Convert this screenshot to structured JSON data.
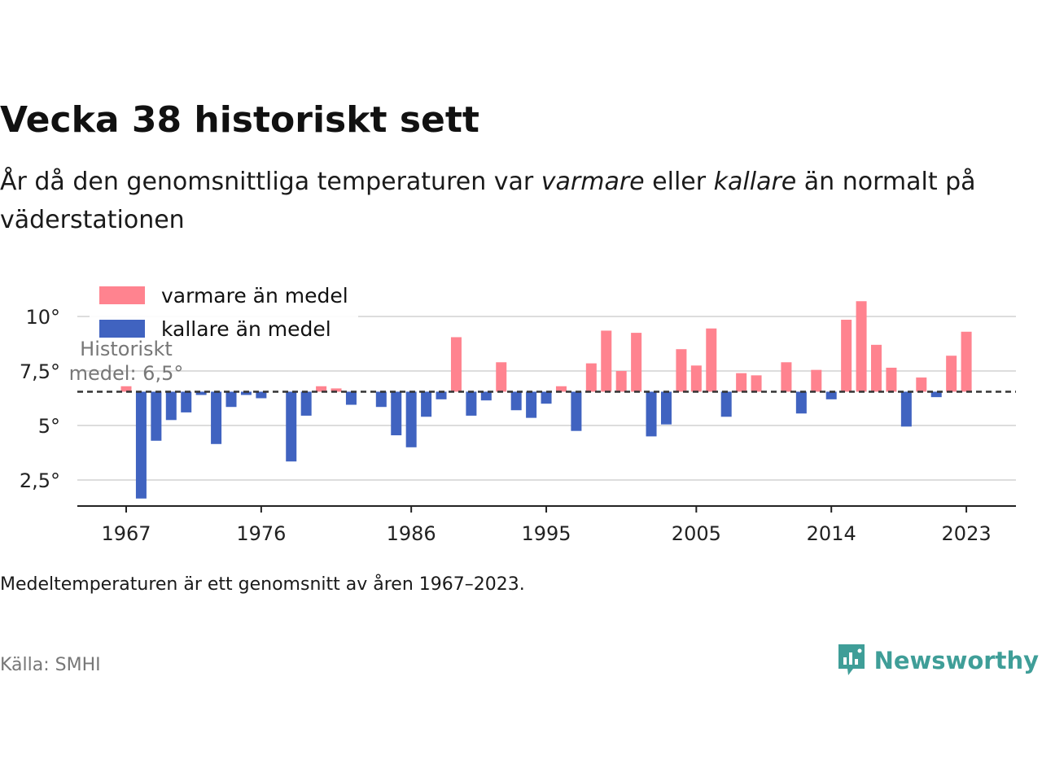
{
  "header": {
    "title": "Vecka 38 historiskt sett",
    "subtitle_parts": [
      "År då den genomsnittliga temperaturen var ",
      "varmare",
      " eller ",
      "kallare",
      " än normalt på väderstationen"
    ]
  },
  "legend": {
    "warm_label": "varmare än medel",
    "cold_label": "kallare än medel"
  },
  "annotation": {
    "line1": "Historiskt",
    "line2": "medel: 6,5°"
  },
  "footer": {
    "note": "Medeltemperaturen är ett genomsnitt av åren 1967–2023.",
    "source": "Källa: SMHI",
    "brand": "Newsworthy"
  },
  "colors": {
    "warm": "#ff838f",
    "cold": "#4063c0",
    "brand": "#3f9e98",
    "grid": "#dddddd",
    "axis": "#222222"
  },
  "chart_data": {
    "type": "bar",
    "baseline": 6.55,
    "ylim": [
      1.0,
      11.5
    ],
    "yticks": [
      2.5,
      5,
      7.5,
      10
    ],
    "ytick_labels": [
      "2,5°",
      "5°",
      "7,5°",
      "10°"
    ],
    "xticks": [
      1967,
      1976,
      1986,
      1995,
      2005,
      2014,
      2023
    ],
    "xtick_labels": [
      "1967",
      "1976",
      "1986",
      "1995",
      "2005",
      "2014",
      "2023"
    ],
    "grid": true,
    "legend_position": "top-left",
    "values": [
      {
        "year": 1967,
        "value": 6.8
      },
      {
        "year": 1968,
        "value": 1.65
      },
      {
        "year": 1969,
        "value": 4.3
      },
      {
        "year": 1970,
        "value": 5.25
      },
      {
        "year": 1971,
        "value": 5.6
      },
      {
        "year": 1972,
        "value": 6.4
      },
      {
        "year": 1973,
        "value": 4.15
      },
      {
        "year": 1974,
        "value": 5.85
      },
      {
        "year": 1975,
        "value": 6.4
      },
      {
        "year": 1976,
        "value": 6.25
      },
      {
        "year": 1978,
        "value": 3.35
      },
      {
        "year": 1979,
        "value": 5.45
      },
      {
        "year": 1980,
        "value": 6.8
      },
      {
        "year": 1981,
        "value": 6.7
      },
      {
        "year": 1982,
        "value": 5.95
      },
      {
        "year": 1984,
        "value": 5.85
      },
      {
        "year": 1985,
        "value": 4.55
      },
      {
        "year": 1986,
        "value": 4.0
      },
      {
        "year": 1987,
        "value": 5.4
      },
      {
        "year": 1988,
        "value": 6.2
      },
      {
        "year": 1989,
        "value": 9.05
      },
      {
        "year": 1990,
        "value": 5.45
      },
      {
        "year": 1991,
        "value": 6.15
      },
      {
        "year": 1992,
        "value": 7.9
      },
      {
        "year": 1993,
        "value": 5.7
      },
      {
        "year": 1994,
        "value": 5.35
      },
      {
        "year": 1995,
        "value": 6.0
      },
      {
        "year": 1996,
        "value": 6.8
      },
      {
        "year": 1997,
        "value": 4.75
      },
      {
        "year": 1998,
        "value": 7.85
      },
      {
        "year": 1999,
        "value": 9.35
      },
      {
        "year": 2000,
        "value": 7.5
      },
      {
        "year": 2001,
        "value": 9.25
      },
      {
        "year": 2002,
        "value": 4.5
      },
      {
        "year": 2003,
        "value": 5.05
      },
      {
        "year": 2004,
        "value": 8.5
      },
      {
        "year": 2005,
        "value": 7.75
      },
      {
        "year": 2006,
        "value": 9.45
      },
      {
        "year": 2007,
        "value": 5.4
      },
      {
        "year": 2008,
        "value": 7.4
      },
      {
        "year": 2009,
        "value": 7.3
      },
      {
        "year": 2011,
        "value": 7.9
      },
      {
        "year": 2012,
        "value": 5.55
      },
      {
        "year": 2013,
        "value": 7.55
      },
      {
        "year": 2014,
        "value": 6.2
      },
      {
        "year": 2015,
        "value": 9.85
      },
      {
        "year": 2016,
        "value": 10.7
      },
      {
        "year": 2017,
        "value": 8.7
      },
      {
        "year": 2018,
        "value": 7.65
      },
      {
        "year": 2019,
        "value": 4.95
      },
      {
        "year": 2020,
        "value": 7.2
      },
      {
        "year": 2021,
        "value": 6.3
      },
      {
        "year": 2022,
        "value": 8.2
      },
      {
        "year": 2023,
        "value": 9.3
      }
    ]
  }
}
